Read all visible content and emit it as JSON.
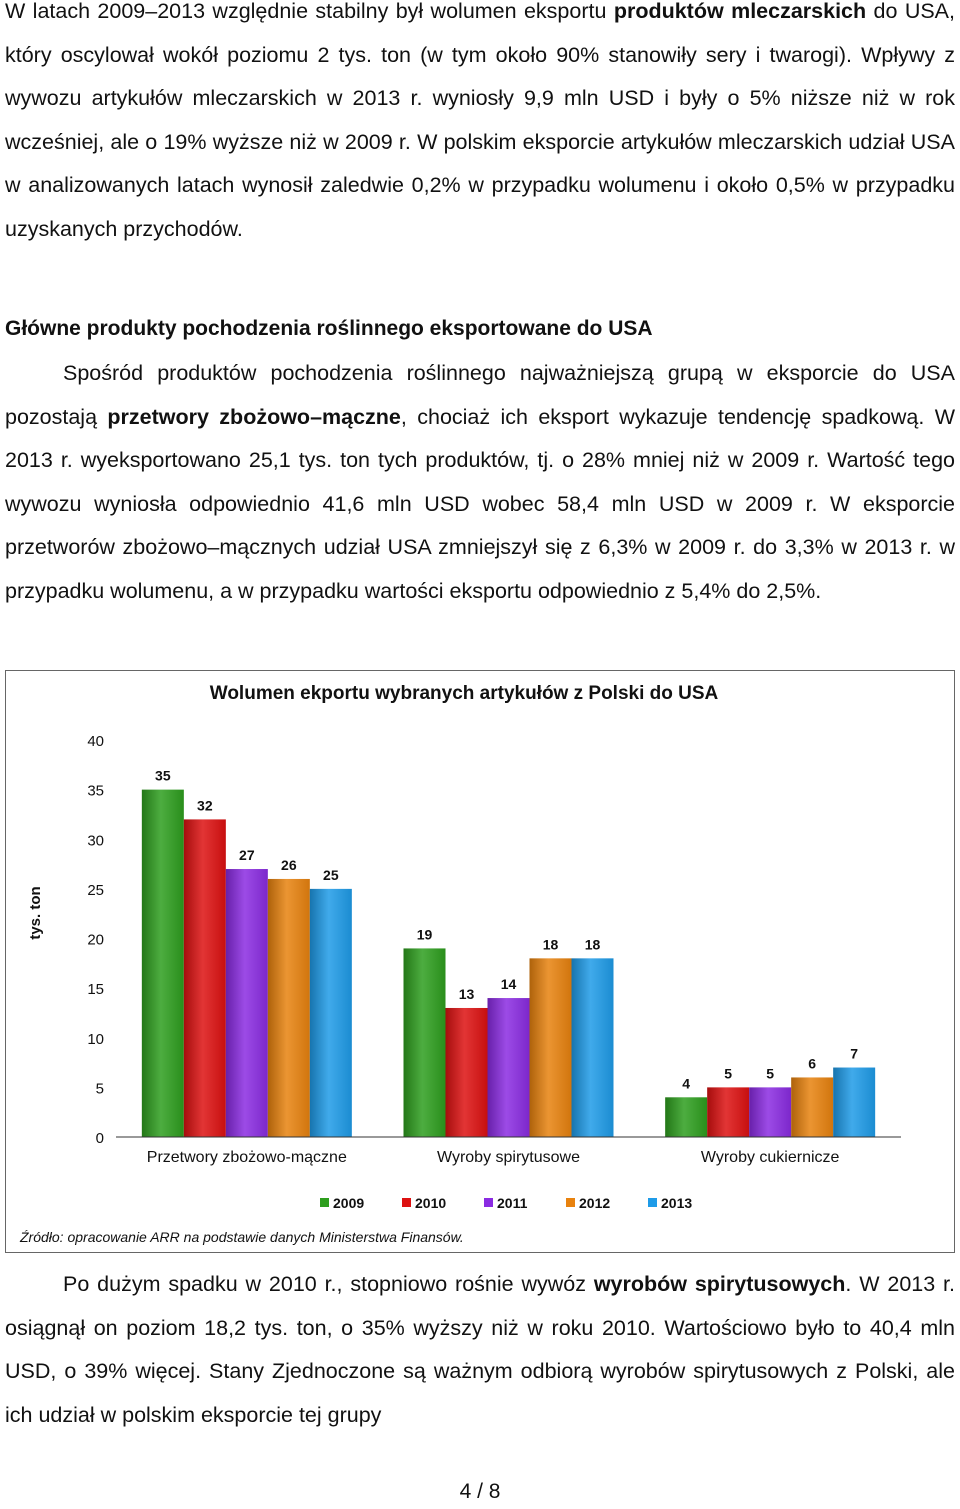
{
  "para1": {
    "s1": "W latach 2009–2013 względnie stabilny był wolumen eksportu ",
    "b1": "produktów mleczarskich",
    "s2": " do USA, który oscylował wokół poziomu 2 tys. ton (w tym około 90% stanowiły sery i twarogi). Wpływy z wywozu artykułów mleczarskich w 2013 r. wyniosły 9,9 mln USD i były o 5% niższe niż w rok wcześniej, ale o 19% wyższe niż w 2009 r. W polskim eksporcie artykułów mleczarskich udział USA w analizowanych latach wynosił zaledwie 0,2% w przypadku wolumenu i około 0,5% w przypadku uzyskanych przychodów."
  },
  "heading": "Główne produkty pochodzenia roślinnego eksportowane do USA",
  "para2": {
    "s1": "Spośród produktów pochodzenia roślinnego najważniejszą grupą w eksporcie do USA pozostają ",
    "b1": "przetwory zbożowo–mączne",
    "s2": ", chociaż ich eksport wykazuje tendencję spadkową. W 2013 r. wyeksportowano 25,1 tys. ton tych produktów, tj. o 28% mniej niż w 2009 r. Wartość tego wywozu wyniosła odpowiednio 41,6 mln USD wobec 58,4 mln USD w 2009 r. W eksporcie przetworów zbożowo–mącznych udział USA zmniejszył się z 6,3% w 2009 r. do 3,3% w 2013 r. w przypadku wolumenu, a w przypadku wartości eksportu odpowiednio z 5,4% do 2,5%."
  },
  "chart_data": {
    "type": "bar",
    "title": "Wolumen ekportu wybranych artykułów z Polski do USA",
    "ylabel": "tys. ton",
    "xlabel": "",
    "ylim": [
      0,
      40
    ],
    "yticks": [
      "0",
      "5",
      "10",
      "15",
      "20",
      "25",
      "30",
      "35",
      "40"
    ],
    "categories": [
      "Przetwory zbożowo-mączne",
      "Wyroby spirytusowe",
      "Wyroby cukiernicze"
    ],
    "series": [
      {
        "name": "2009",
        "color": "#2e9e1e",
        "values": [
          35,
          19,
          4
        ]
      },
      {
        "name": "2010",
        "color": "#dd1111",
        "values": [
          32,
          13,
          5
        ]
      },
      {
        "name": "2011",
        "color": "#8a2be2",
        "values": [
          27,
          14,
          5
        ]
      },
      {
        "name": "2012",
        "color": "#e8820e",
        "values": [
          26,
          18,
          6
        ]
      },
      {
        "name": "2013",
        "color": "#1e9be8",
        "values": [
          25,
          18,
          7
        ]
      }
    ],
    "legend_position": "bottom",
    "grid": false,
    "source": "Źródło: opracowanie ARR na podstawie danych Ministerstwa Finansów."
  },
  "para3": {
    "s1": "Po dużym spadku w 2010 r., stopniowo rośnie wywóz ",
    "b1": "wyrobów spirytusowych",
    "s2": ". W 2013 r. osiągnął on poziom 18,2 tys. ton, o 35% wyższy niż w roku 2010. Wartościowo było to 40,4 mln USD, o 39% więcej. Stany Zjednoczone są ważnym odbiorą wyrobów spirytusowych z Polski, ale ich udział w polskim eksporcie tej grupy"
  },
  "page_number": "4 / 8"
}
